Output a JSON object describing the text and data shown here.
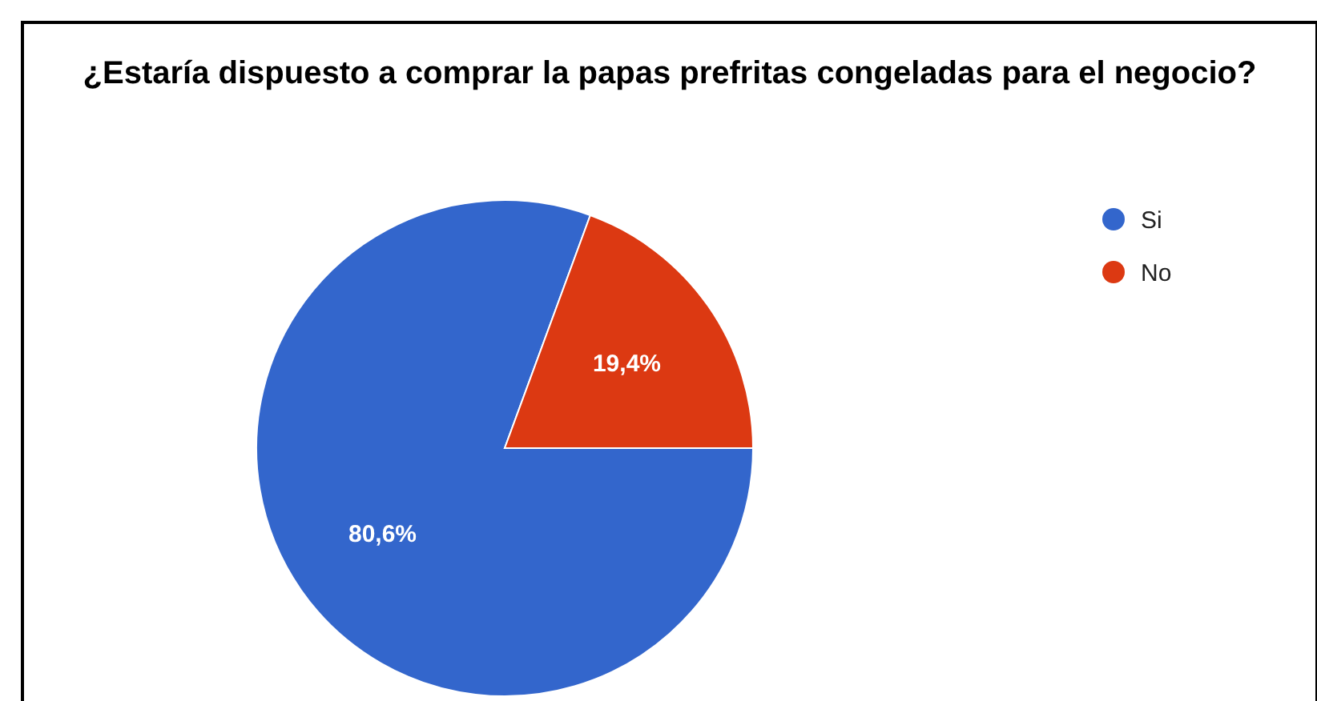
{
  "chart_data": {
    "type": "pie",
    "title": "¿Estaría dispuesto a comprar la papas prefritas congeladas para el negocio?",
    "categories": [
      "Si",
      "No"
    ],
    "values": [
      80.6,
      19.4
    ],
    "colors": [
      "#3366cc",
      "#dc3912"
    ],
    "value_labels": [
      "80,6%",
      "19,4%"
    ],
    "legend": "right"
  }
}
